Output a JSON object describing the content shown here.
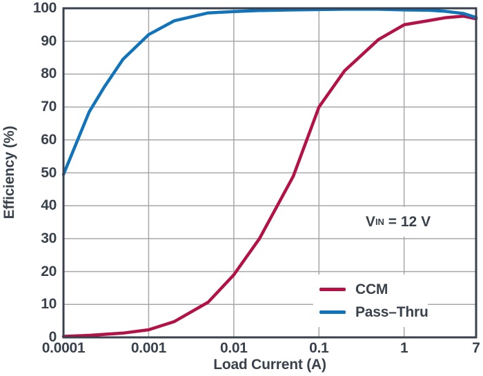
{
  "chart_data": {
    "type": "line",
    "xlabel": "Load Current (A)",
    "ylabel": "Efficiency (%)",
    "x_scale": "log",
    "xlim": [
      0.0001,
      7
    ],
    "ylim": [
      0,
      100
    ],
    "grid": true,
    "grid_color": "#a5a7aa",
    "frame_color": "#39424c",
    "text_color": "#39424c",
    "background": "#ffffff",
    "x_ticks": [
      {
        "value": 0.0001,
        "label": "0.0001"
      },
      {
        "value": 0.001,
        "label": "0.001"
      },
      {
        "value": 0.01,
        "label": "0.01"
      },
      {
        "value": 0.1,
        "label": "0.1"
      },
      {
        "value": 1,
        "label": "1"
      },
      {
        "value": 7,
        "label": "7"
      }
    ],
    "y_ticks": [
      {
        "value": 0,
        "label": "0"
      },
      {
        "value": 10,
        "label": "10"
      },
      {
        "value": 20,
        "label": "20"
      },
      {
        "value": 30,
        "label": "30"
      },
      {
        "value": 40,
        "label": "40"
      },
      {
        "value": 50,
        "label": "50"
      },
      {
        "value": 60,
        "label": "60"
      },
      {
        "value": 70,
        "label": "70"
      },
      {
        "value": 80,
        "label": "80"
      },
      {
        "value": 90,
        "label": "90"
      },
      {
        "value": 100,
        "label": "100"
      }
    ],
    "annotation": {
      "prefix": "V",
      "sub": "IN",
      "rest": " = 12 V"
    },
    "legend_position": "lower-right-inside",
    "series": [
      {
        "name": "CCM",
        "color": "#b31246",
        "x": [
          0.0001,
          0.0002,
          0.0005,
          0.001,
          0.002,
          0.005,
          0.01,
          0.02,
          0.05,
          0.1,
          0.2,
          0.5,
          1,
          2,
          3,
          5,
          7
        ],
        "y": [
          0.3,
          0.6,
          1.3,
          2.3,
          4.8,
          10.7,
          19,
          30,
          49,
          70,
          81,
          90.5,
          95,
          96.3,
          97.1,
          97.6,
          96.8
        ]
      },
      {
        "name": "Pass–Thru",
        "color": "#1173b9",
        "x": [
          0.0001,
          0.0002,
          0.0003,
          0.0005,
          0.001,
          0.002,
          0.005,
          0.01,
          0.02,
          0.05,
          0.1,
          0.2,
          0.5,
          1,
          2,
          3,
          5,
          7
        ],
        "y": [
          49.5,
          68.5,
          76,
          84.5,
          92,
          96.2,
          98.6,
          99.0,
          99.3,
          99.5,
          99.6,
          99.7,
          99.7,
          99.5,
          99.4,
          99.1,
          98.4,
          97.2
        ]
      }
    ]
  }
}
